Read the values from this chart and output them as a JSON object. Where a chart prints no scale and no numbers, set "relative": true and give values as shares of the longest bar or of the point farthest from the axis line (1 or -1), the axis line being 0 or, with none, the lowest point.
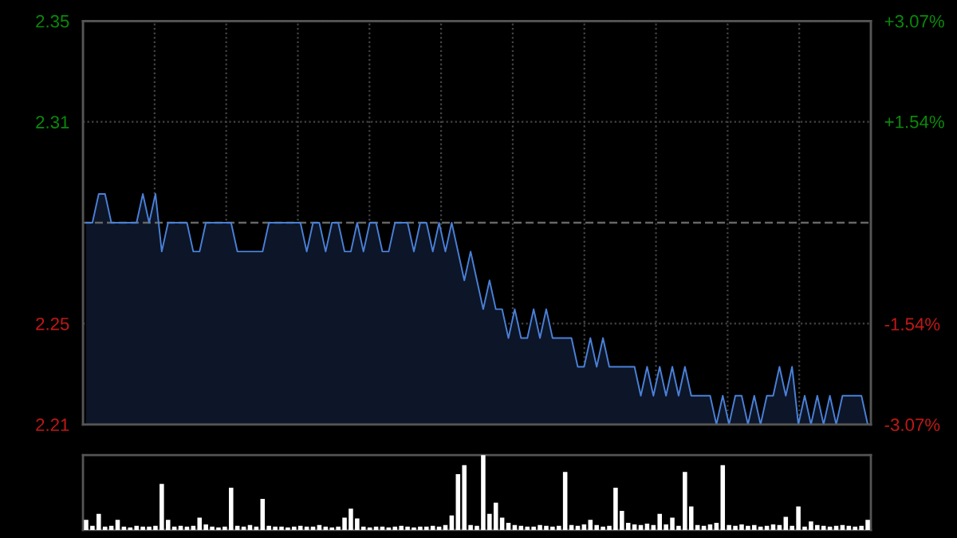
{
  "chart_data": [
    {
      "type": "area",
      "categories": [
        null,
        null,
        null,
        null,
        null,
        null,
        null,
        null,
        null,
        null,
        null,
        null,
        null,
        null,
        null,
        null,
        null,
        null,
        null,
        null,
        null,
        null,
        null,
        null,
        null,
        null,
        null,
        null,
        null,
        null,
        null,
        null,
        null,
        null,
        null,
        null,
        null,
        null,
        null,
        null,
        null,
        null,
        null,
        null,
        null,
        null,
        null,
        null,
        null,
        null,
        null,
        null,
        null,
        null,
        null,
        null,
        null,
        null,
        null,
        null,
        null,
        null,
        null,
        null,
        null,
        null,
        null,
        null,
        null,
        null,
        null,
        null,
        null,
        null,
        null,
        null,
        null,
        null,
        null,
        null,
        null,
        null,
        null,
        null,
        null,
        null,
        null,
        null,
        null,
        null,
        null,
        null,
        null,
        null,
        null,
        null,
        null,
        null,
        null,
        null,
        null,
        null,
        null,
        null,
        null,
        null,
        null,
        null,
        null,
        null,
        null,
        null,
        null,
        null,
        null,
        null,
        null,
        null,
        null,
        null,
        null,
        null,
        null,
        null,
        null
      ],
      "series": [
        {
          "color": "#4a80d8",
          "values": [
            2.28,
            2.28,
            2.29,
            2.29,
            2.28,
            2.28,
            2.28,
            2.28,
            2.28,
            2.29,
            2.28,
            2.29,
            2.27,
            2.28,
            2.28,
            2.28,
            2.28,
            2.27,
            2.27,
            2.28,
            2.28,
            2.28,
            2.28,
            2.28,
            2.27,
            2.27,
            2.27,
            2.27,
            2.27,
            2.28,
            2.28,
            2.28,
            2.28,
            2.28,
            2.28,
            2.27,
            2.28,
            2.28,
            2.27,
            2.28,
            2.28,
            2.27,
            2.27,
            2.28,
            2.27,
            2.28,
            2.28,
            2.27,
            2.27,
            2.28,
            2.28,
            2.28,
            2.27,
            2.28,
            2.28,
            2.27,
            2.28,
            2.27,
            2.28,
            2.27,
            2.26,
            2.27,
            2.26,
            2.25,
            2.26,
            2.25,
            2.25,
            2.24,
            2.25,
            2.24,
            2.24,
            2.25,
            2.24,
            2.25,
            2.24,
            2.24,
            2.24,
            2.24,
            2.23,
            2.23,
            2.24,
            2.23,
            2.24,
            2.23,
            2.23,
            2.23,
            2.23,
            2.23,
            2.22,
            2.23,
            2.22,
            2.23,
            2.22,
            2.23,
            2.22,
            2.23,
            2.22,
            2.22,
            2.22,
            2.22,
            2.21,
            2.22,
            2.21,
            2.22,
            2.22,
            2.21,
            2.22,
            2.21,
            2.22,
            2.22,
            2.23,
            2.22,
            2.23,
            2.21,
            2.22,
            2.21,
            2.22,
            2.21,
            2.22,
            2.21,
            2.22,
            2.22,
            2.22,
            2.22,
            2.21
          ]
        }
      ],
      "ylim": [
        2.21,
        2.35
      ],
      "yticks": [
        2.35,
        {
          "value": 2.315,
          "label": "2.31"
        },
        {
          "value": 2.245,
          "label": "2.25"
        },
        2.21
      ],
      "y2lim": [
        -3.07,
        3.07
      ],
      "y2ticks": [
        {
          "value": 3.07,
          "label": "+3.07%"
        },
        {
          "value": 1.54,
          "label": "+1.54%"
        },
        {
          "value": -1.54,
          "label": "-1.54%"
        },
        {
          "value": -3.07,
          "label": "-3.07%"
        }
      ],
      "ref_lines": [
        {
          "axis": "y",
          "value": 2.28,
          "color": "#666666",
          "line_style": "dashed"
        }
      ],
      "grid": true,
      "legend": false
    },
    {
      "type": "bar",
      "relative": true,
      "categories": [
        null,
        null,
        null,
        null,
        null,
        null,
        null,
        null,
        null,
        null,
        null,
        null,
        null,
        null,
        null,
        null,
        null,
        null,
        null,
        null,
        null,
        null,
        null,
        null,
        null,
        null,
        null,
        null,
        null,
        null,
        null,
        null,
        null,
        null,
        null,
        null,
        null,
        null,
        null,
        null,
        null,
        null,
        null,
        null,
        null,
        null,
        null,
        null,
        null,
        null,
        null,
        null,
        null,
        null,
        null,
        null,
        null,
        null,
        null,
        null,
        null,
        null,
        null,
        null,
        null,
        null,
        null,
        null,
        null,
        null,
        null,
        null,
        null,
        null,
        null,
        null,
        null,
        null,
        null,
        null,
        null,
        null,
        null,
        null,
        null,
        null,
        null,
        null,
        null,
        null,
        null,
        null,
        null,
        null,
        null,
        null,
        null,
        null,
        null,
        null,
        null,
        null,
        null,
        null,
        null,
        null,
        null,
        null,
        null,
        null,
        null,
        null,
        null,
        null,
        null,
        null,
        null,
        null,
        null,
        null,
        null,
        null,
        null,
        null,
        null
      ],
      "series": [
        {
          "color": "#8a8a8a",
          "values": [
            0.12,
            0.04,
            0.2,
            0.03,
            0.04,
            0.12,
            0.03,
            0.02,
            0.04,
            0.03,
            0.03,
            0.04,
            0.6,
            0.12,
            0.03,
            0.04,
            0.03,
            0.04,
            0.15,
            0.06,
            0.03,
            0.02,
            0.03,
            0.55,
            0.04,
            0.03,
            0.05,
            0.03,
            0.4,
            0.04,
            0.03,
            0.03,
            0.02,
            0.03,
            0.04,
            0.03,
            0.03,
            0.05,
            0.03,
            0.02,
            0.03,
            0.15,
            0.27,
            0.14,
            0.03,
            0.02,
            0.03,
            0.03,
            0.02,
            0.03,
            0.04,
            0.03,
            0.02,
            0.03,
            0.03,
            0.04,
            0.03,
            0.05,
            0.18,
            0.73,
            0.85,
            0.05,
            0.04,
            1.0,
            0.2,
            0.35,
            0.15,
            0.08,
            0.05,
            0.04,
            0.03,
            0.03,
            0.05,
            0.04,
            0.03,
            0.04,
            0.76,
            0.05,
            0.04,
            0.06,
            0.12,
            0.05,
            0.03,
            0.04,
            0.55,
            0.24,
            0.08,
            0.06,
            0.05,
            0.07,
            0.05,
            0.2,
            0.06,
            0.15,
            0.04,
            0.76,
            0.3,
            0.05,
            0.04,
            0.06,
            0.08,
            0.85,
            0.05,
            0.04,
            0.06,
            0.04,
            0.05,
            0.03,
            0.04,
            0.06,
            0.05,
            0.16,
            0.04,
            0.3,
            0.03,
            0.1,
            0.05,
            0.04,
            0.03,
            0.04,
            0.05,
            0.04,
            0.03,
            0.04,
            0.12
          ]
        }
      ],
      "grid": false,
      "legend": false
    }
  ]
}
